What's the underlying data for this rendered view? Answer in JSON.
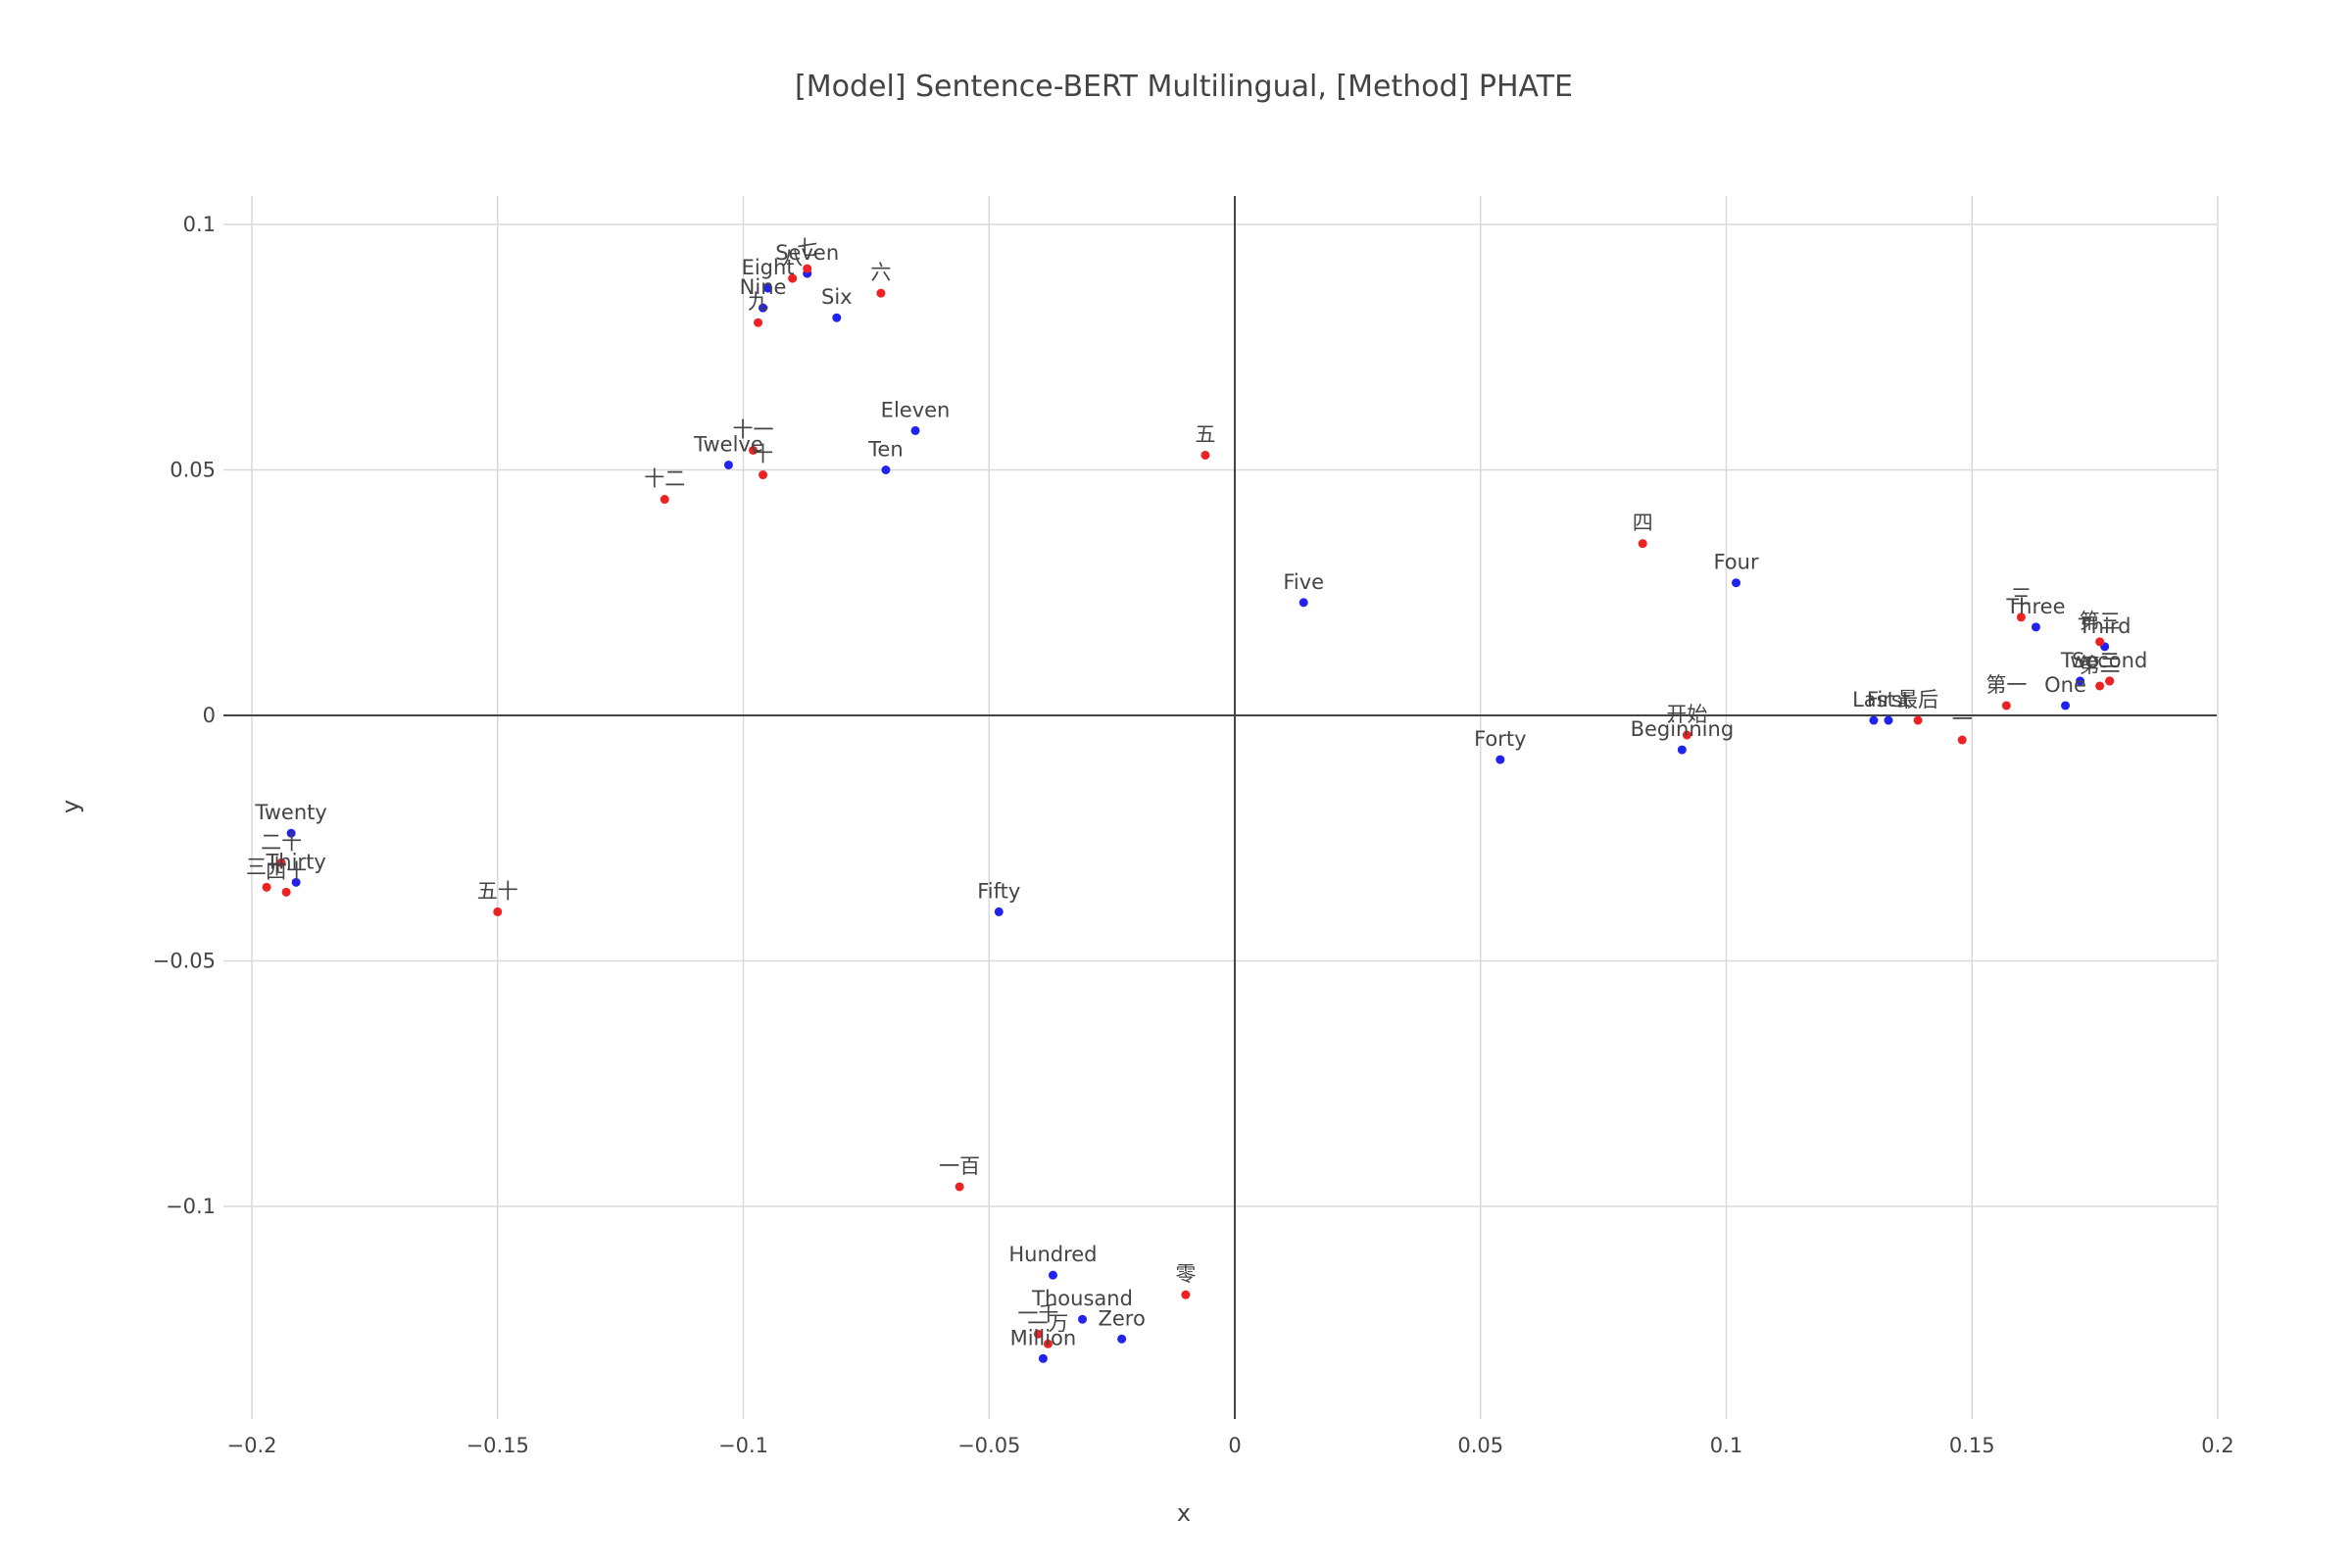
{
  "chart_data": {
    "type": "scatter",
    "title": "[Model] Sentence-BERT Multilingual, [Method] PHATE",
    "xlabel": "x",
    "ylabel": "y",
    "xlim": [
      -0.2,
      0.2
    ],
    "ylim": [
      -0.14,
      0.1
    ],
    "xticks": [
      {
        "value": -0.2,
        "label": "−0.2"
      },
      {
        "value": -0.15,
        "label": "−0.15"
      },
      {
        "value": -0.1,
        "label": "−0.1"
      },
      {
        "value": -0.05,
        "label": "−0.05"
      },
      {
        "value": 0,
        "label": "0"
      },
      {
        "value": 0.05,
        "label": "0.05"
      },
      {
        "value": 0.1,
        "label": "0.1"
      },
      {
        "value": 0.15,
        "label": "0.15"
      },
      {
        "value": 0.2,
        "label": "0.2"
      }
    ],
    "yticks": [
      {
        "value": 0.1,
        "label": "0.1"
      },
      {
        "value": 0.05,
        "label": "0.05"
      },
      {
        "value": 0,
        "label": "0"
      },
      {
        "value": -0.05,
        "label": "−0.05"
      },
      {
        "value": -0.1,
        "label": "−0.1"
      }
    ],
    "grid": true,
    "colors": {
      "english": "#2222ee",
      "chinese": "#ee2222"
    },
    "series": [
      {
        "color": "#2222ee",
        "points": [
          {
            "label": "Seven",
            "x": -0.087,
            "y": 0.09
          },
          {
            "label": "Eight",
            "x": -0.095,
            "y": 0.087
          },
          {
            "label": "Nine",
            "x": -0.096,
            "y": 0.083
          },
          {
            "label": "Six",
            "x": -0.081,
            "y": 0.081
          },
          {
            "label": "Eleven",
            "x": -0.065,
            "y": 0.058
          },
          {
            "label": "Twelve",
            "x": -0.103,
            "y": 0.051
          },
          {
            "label": "Ten",
            "x": -0.071,
            "y": 0.05
          },
          {
            "label": "Five",
            "x": 0.014,
            "y": 0.023
          },
          {
            "label": "Four",
            "x": 0.102,
            "y": 0.027
          },
          {
            "label": "Forty",
            "x": 0.054,
            "y": -0.009
          },
          {
            "label": "Beginning",
            "x": 0.091,
            "y": -0.007
          },
          {
            "label": "Last",
            "x": 0.13,
            "y": -0.001
          },
          {
            "label": "First",
            "x": 0.133,
            "y": -0.001
          },
          {
            "label": "Three",
            "x": 0.163,
            "y": 0.018
          },
          {
            "label": "Third",
            "x": 0.177,
            "y": 0.014
          },
          {
            "label": "Two",
            "x": 0.172,
            "y": 0.007
          },
          {
            "label": "Second",
            "x": 0.178,
            "y": 0.007
          },
          {
            "label": "One",
            "x": 0.169,
            "y": 0.002
          },
          {
            "label": "Twenty",
            "x": -0.192,
            "y": -0.024
          },
          {
            "label": "Thirty",
            "x": -0.191,
            "y": -0.034
          },
          {
            "label": "Fifty",
            "x": -0.048,
            "y": -0.04
          },
          {
            "label": "Hundred",
            "x": -0.037,
            "y": -0.114
          },
          {
            "label": "Thousand",
            "x": -0.031,
            "y": -0.123
          },
          {
            "label": "Zero",
            "x": -0.023,
            "y": -0.127
          },
          {
            "label": "Million",
            "x": -0.039,
            "y": -0.131
          }
        ]
      },
      {
        "color": "#ee2222",
        "points": [
          {
            "label": "七",
            "x": -0.087,
            "y": 0.091
          },
          {
            "label": "八",
            "x": -0.09,
            "y": 0.089
          },
          {
            "label": "九",
            "x": -0.097,
            "y": 0.08
          },
          {
            "label": "六",
            "x": -0.072,
            "y": 0.086
          },
          {
            "label": "十一",
            "x": -0.098,
            "y": 0.054
          },
          {
            "label": "十",
            "x": -0.096,
            "y": 0.049
          },
          {
            "label": "十二",
            "x": -0.116,
            "y": 0.044
          },
          {
            "label": "五",
            "x": -0.006,
            "y": 0.053
          },
          {
            "label": "四",
            "x": 0.083,
            "y": 0.035
          },
          {
            "label": "开始",
            "x": 0.092,
            "y": -0.004
          },
          {
            "label": "最后",
            "x": 0.139,
            "y": -0.001
          },
          {
            "label": "一",
            "x": 0.148,
            "y": -0.005
          },
          {
            "label": "第一",
            "x": 0.157,
            "y": 0.002
          },
          {
            "label": "三",
            "x": 0.16,
            "y": 0.02
          },
          {
            "label": "第三",
            "x": 0.176,
            "y": 0.015
          },
          {
            "label": "第二",
            "x": 0.176,
            "y": 0.006
          },
          {
            "label": "二",
            "x": 0.178,
            "y": 0.007
          },
          {
            "label": "二十",
            "x": -0.194,
            "y": -0.03
          },
          {
            "label": "三十",
            "x": -0.197,
            "y": -0.035
          },
          {
            "label": "四十",
            "x": -0.193,
            "y": -0.036
          },
          {
            "label": "五十",
            "x": -0.15,
            "y": -0.04
          },
          {
            "label": "一百",
            "x": -0.056,
            "y": -0.096
          },
          {
            "label": "零",
            "x": -0.01,
            "y": -0.118
          },
          {
            "label": "一千",
            "x": -0.04,
            "y": -0.126
          },
          {
            "label": "一万",
            "x": -0.038,
            "y": -0.128
          }
        ]
      }
    ]
  }
}
